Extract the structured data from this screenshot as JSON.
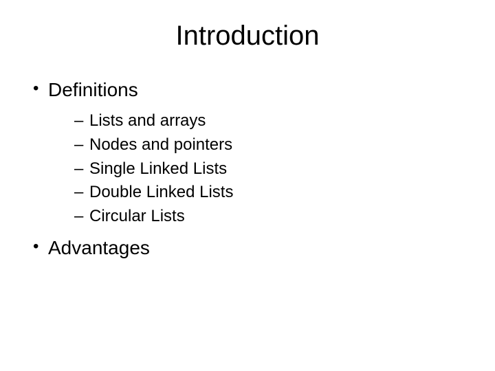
{
  "slide": {
    "title": "Introduction",
    "title_fontsize": 40,
    "title_color": "#000000",
    "background_color": "#ffffff",
    "font_family": "Arial",
    "bullets": [
      {
        "label": "Definitions",
        "fontsize": 28,
        "color": "#000000",
        "sub": [
          {
            "label": "Lists and arrays",
            "fontsize": 24,
            "color": "#000000"
          },
          {
            "label": "Nodes and pointers",
            "fontsize": 24,
            "color": "#000000"
          },
          {
            "label": "Single Linked Lists",
            "fontsize": 24,
            "color": "#000000"
          },
          {
            "label": "Double Linked Lists",
            "fontsize": 24,
            "color": "#000000"
          },
          {
            "label": "Circular Lists",
            "fontsize": 24,
            "color": "#000000"
          }
        ]
      },
      {
        "label": "Advantages",
        "fontsize": 28,
        "color": "#000000",
        "sub": []
      }
    ]
  }
}
